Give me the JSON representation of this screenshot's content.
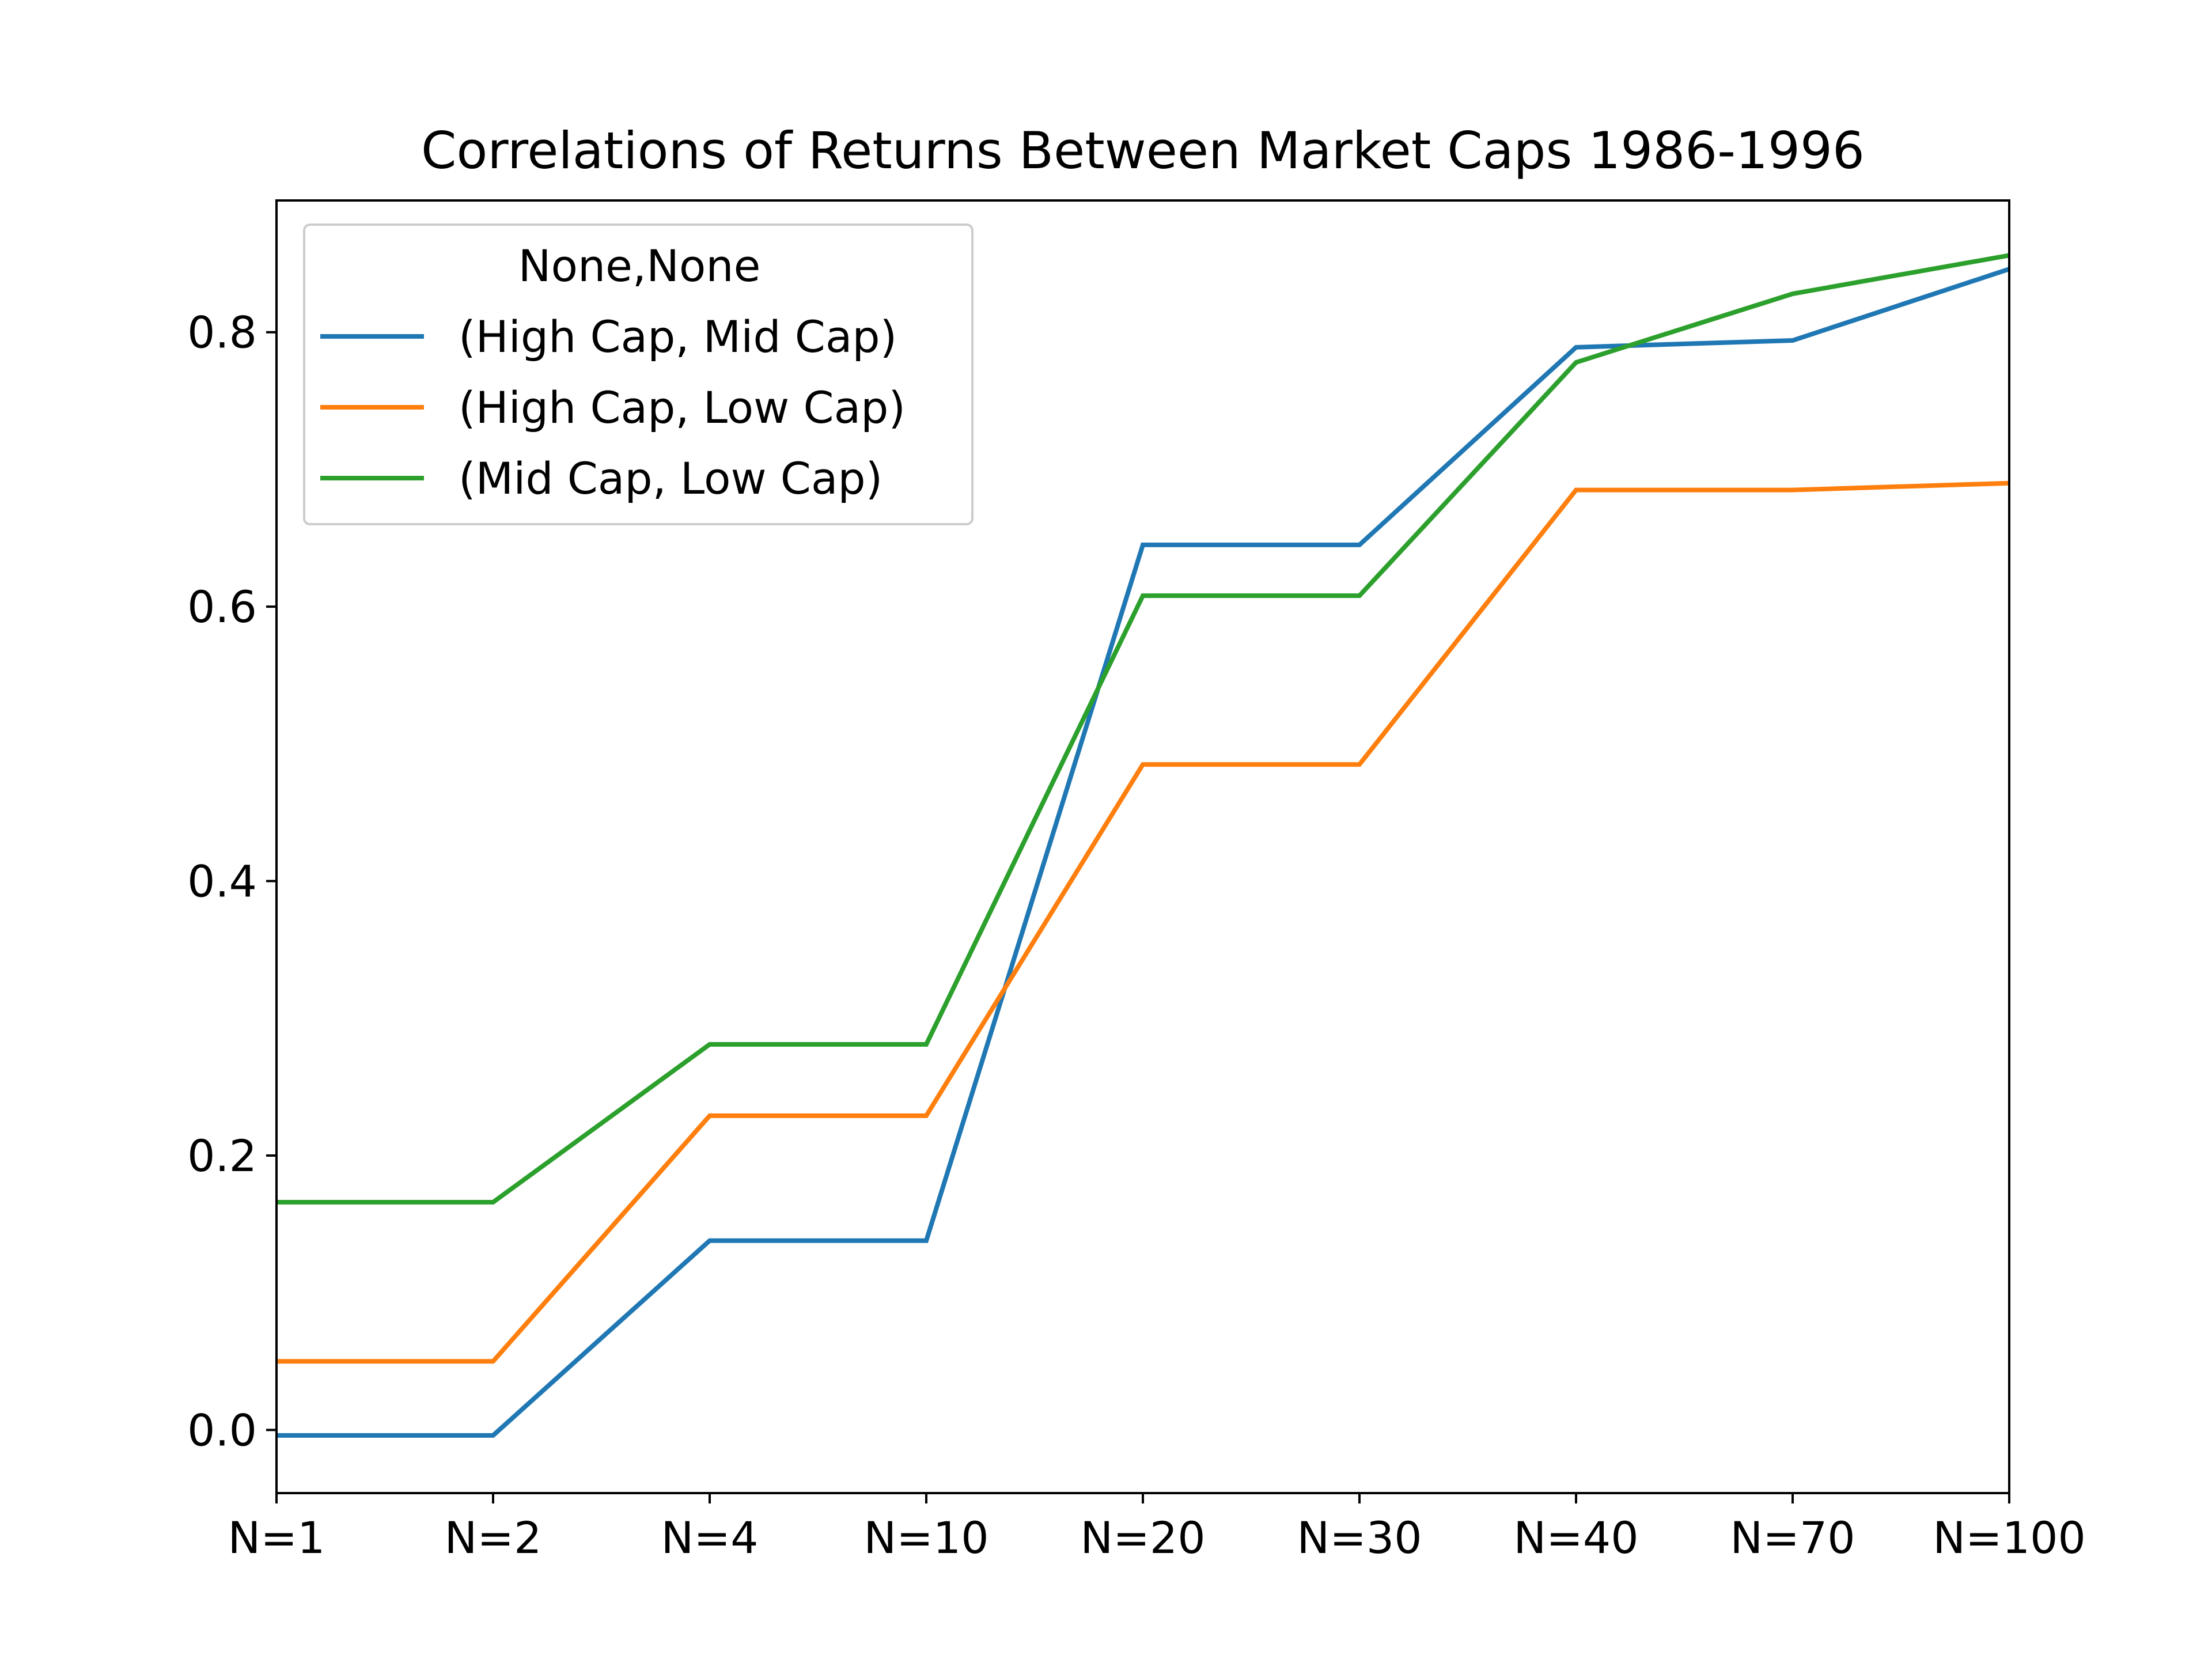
{
  "chart_data": {
    "type": "line",
    "title": "Correlations of Returns Between Market Caps 1986-1996",
    "xlabel": "",
    "ylabel": "",
    "categories": [
      "N=1",
      "N=2",
      "N=4",
      "N=10",
      "N=20",
      "N=30",
      "N=40",
      "N=70",
      "N=100"
    ],
    "ylim": [
      -0.046,
      0.896
    ],
    "yticks": [
      0.0,
      0.2,
      0.4,
      0.6,
      0.8
    ],
    "ytick_labels": [
      "0.0",
      "0.2",
      "0.4",
      "0.6",
      "0.8"
    ],
    "grid": false,
    "legend": {
      "title": "None,None",
      "placement": "top-left"
    },
    "series": [
      {
        "name": "(High Cap, Mid Cap)",
        "color": "#1f77b4",
        "values": [
          -0.004,
          -0.004,
          0.138,
          0.138,
          0.645,
          0.645,
          0.789,
          0.794,
          0.846
        ]
      },
      {
        "name": "(High Cap, Low Cap)",
        "color": "#ff7f0e",
        "values": [
          0.05,
          0.05,
          0.229,
          0.229,
          0.485,
          0.485,
          0.685,
          0.685,
          0.69
        ]
      },
      {
        "name": "(Mid Cap, Low Cap)",
        "color": "#2ca02c",
        "values": [
          0.166,
          0.166,
          0.281,
          0.281,
          0.608,
          0.608,
          0.778,
          0.828,
          0.856
        ]
      }
    ]
  }
}
